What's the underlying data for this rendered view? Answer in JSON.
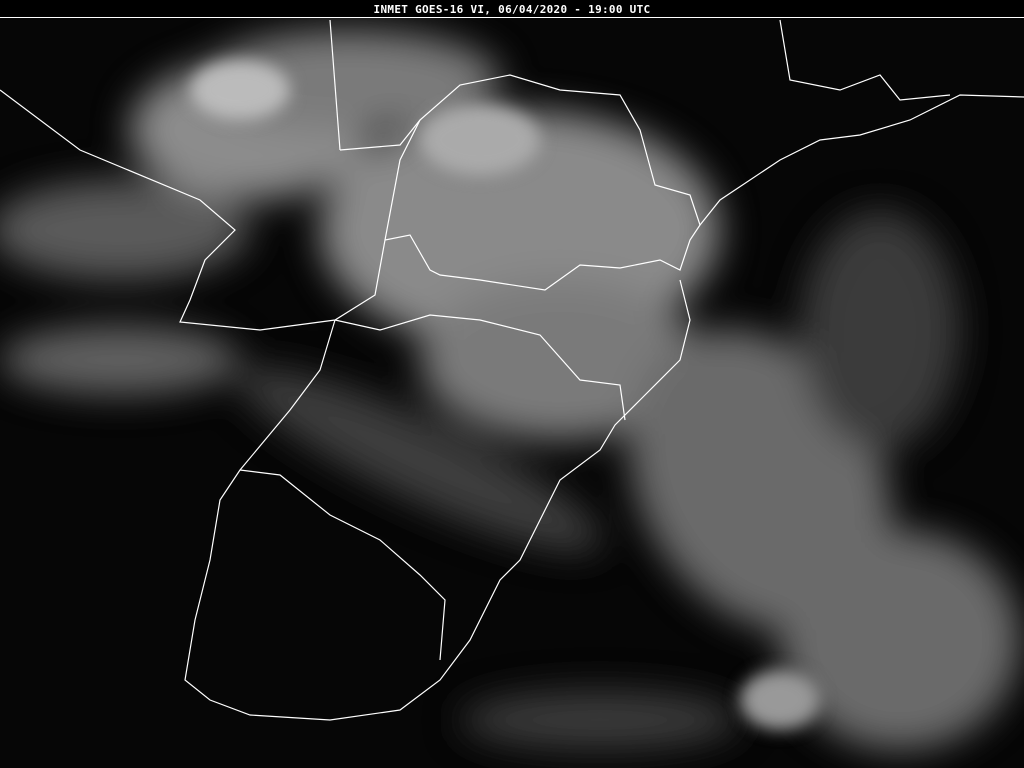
{
  "header": {
    "title": "INMET GOES-16 VI, 06/04/2020 - 19:00 UTC"
  },
  "map": {
    "type": "satellite visible imagery",
    "colors": {
      "background": "#050505",
      "clouds": "#9a9a9a",
      "borders": "#ffffff"
    }
  }
}
